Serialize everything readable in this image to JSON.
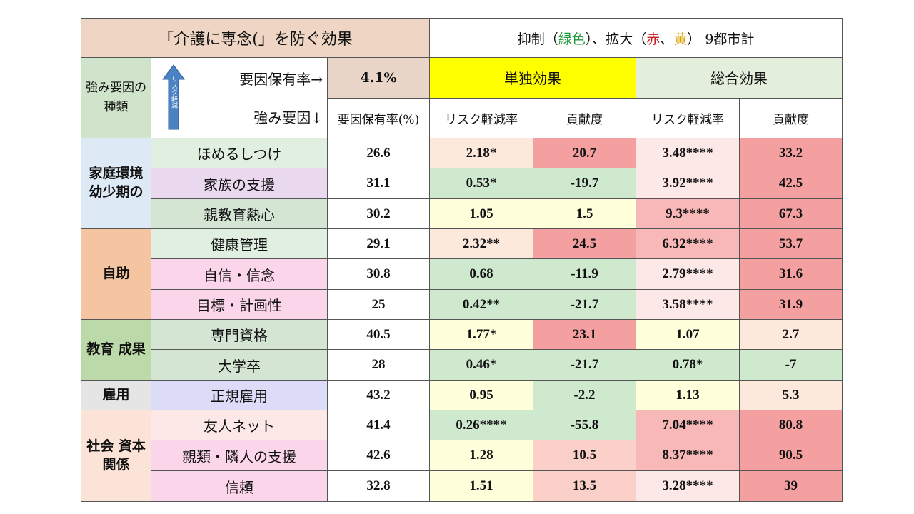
{
  "title": "「介護に専念(」を防ぐ効果",
  "subtitle": {
    "a": "抑制（",
    "green": "緑色",
    "b": "）、拡大（",
    "red": "赤",
    "c": "、",
    "yellow": "黄",
    "d": "）  9都市計"
  },
  "header": {
    "kind_label": "強み要因の種類",
    "arrow_text": "リスク軽減",
    "rate_row_label": "要因保有率→",
    "overall_rate": "4.1%",
    "single_effect": "単独効果",
    "total_effect": "総合効果",
    "factor_label": "強み要因↓",
    "rate_col": "要因保有率(%)",
    "risk_reduction": "リスク軽減率",
    "contribution": "貢献度"
  },
  "categories": [
    {
      "label": "家庭環境 幼少期の",
      "rows": 3
    },
    {
      "label": "自助",
      "rows": 3
    },
    {
      "label": "教育 成果",
      "rows": 2
    },
    {
      "label": "雇用",
      "rows": 1
    },
    {
      "label": "社会 資本関係",
      "rows": 3
    }
  ],
  "rows": [
    {
      "factor": "ほめるしつけ",
      "rate": "26.6",
      "s_risk": "2.18*",
      "s_contrib": "20.7",
      "t_risk": "3.48****",
      "t_contrib": "33.2"
    },
    {
      "factor": "家族の支援",
      "rate": "31.1",
      "s_risk": "0.53*",
      "s_contrib": "-19.7",
      "t_risk": "3.92****",
      "t_contrib": "42.5"
    },
    {
      "factor": "親教育熱心",
      "rate": "30.2",
      "s_risk": "1.05",
      "s_contrib": "1.5",
      "t_risk": "9.3****",
      "t_contrib": "67.3"
    },
    {
      "factor": "健康管理",
      "rate": "29.1",
      "s_risk": "2.32**",
      "s_contrib": "24.5",
      "t_risk": "6.32****",
      "t_contrib": "53.7"
    },
    {
      "factor": "自信・信念",
      "rate": "30.8",
      "s_risk": "0.68",
      "s_contrib": "-11.9",
      "t_risk": "2.79****",
      "t_contrib": "31.6"
    },
    {
      "factor": "目標・計画性",
      "rate": "25",
      "s_risk": "0.42**",
      "s_contrib": "-21.7",
      "t_risk": "3.58****",
      "t_contrib": "31.9"
    },
    {
      "factor": "専門資格",
      "rate": "40.5",
      "s_risk": "1.77*",
      "s_contrib": "23.1",
      "t_risk": "1.07",
      "t_contrib": "2.7"
    },
    {
      "factor": "大学卒",
      "rate": "28",
      "s_risk": "0.46*",
      "s_contrib": "-21.7",
      "t_risk": "0.78*",
      "t_contrib": "-7"
    },
    {
      "factor": "正規雇用",
      "rate": "43.2",
      "s_risk": "0.95",
      "s_contrib": "-2.2",
      "t_risk": "1.13",
      "t_contrib": "5.3"
    },
    {
      "factor": "友人ネット",
      "rate": "41.4",
      "s_risk": "0.26****",
      "s_contrib": "-55.8",
      "t_risk": "7.04****",
      "t_contrib": "80.8"
    },
    {
      "factor": "親類・隣人の支援",
      "rate": "42.6",
      "s_risk": "1.28",
      "s_contrib": "10.5",
      "t_risk": "8.37****",
      "t_contrib": "90.5"
    },
    {
      "factor": "信頼",
      "rate": "32.8",
      "s_risk": "1.51",
      "s_contrib": "13.5",
      "t_risk": "3.28****",
      "t_contrib": "39"
    }
  ],
  "colors": {
    "factor_bg": [
      "#e0efe0",
      "#ead8ee",
      "#d4e5d4",
      "#e0efe0",
      "#fbd5ea",
      "#fbd5ea",
      "#d4e5d4",
      "#d4e5d4",
      "#dcdcf8",
      "#fde8e8",
      "#fbd5ea",
      "#fbd5ea"
    ],
    "s_risk_bg": [
      "#fde8dc",
      "#cfe9cf",
      "#ffffdc",
      "#fde8dc",
      "#cfe9cf",
      "#cfe9cf",
      "#ffffdc",
      "#cfe9cf",
      "#ffffdc",
      "#cfe9cf",
      "#ffffdc",
      "#ffffdc"
    ],
    "s_contrib_bg": [
      "#f4a0a0",
      "#cfe9cf",
      "#ffffdc",
      "#f4a0a0",
      "#cfe9cf",
      "#cfe9cf",
      "#f4a0a0",
      "#cfe9cf",
      "#cfe9cf",
      "#cfe9cf",
      "#fbd0c8",
      "#fbd0c8"
    ],
    "t_risk_bg": [
      "#fde8e8",
      "#fde8e8",
      "#f8b8b8",
      "#f8b8b8",
      "#fde8e8",
      "#fde8e8",
      "#ffffdc",
      "#cfe9cf",
      "#ffffdc",
      "#f8b8b8",
      "#f8b8b8",
      "#fde8e8"
    ],
    "t_contrib_bg": [
      "#f4a0a0",
      "#f4a0a0",
      "#f4a0a0",
      "#f4a0a0",
      "#f4a0a0",
      "#f4a0a0",
      "#fde8dc",
      "#cfe9cf",
      "#fde8dc",
      "#f4a0a0",
      "#f4a0a0",
      "#f4a0a0"
    ]
  }
}
